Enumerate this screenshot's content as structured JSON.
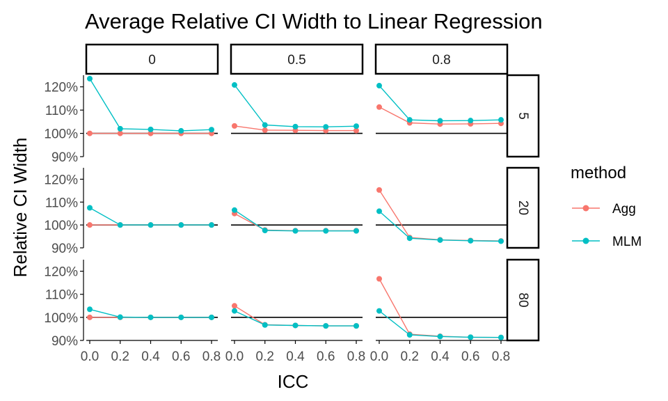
{
  "chart_data": {
    "type": "line",
    "title": "Average Relative CI Width to Linear Regression",
    "xlabel": "ICC",
    "ylabel": "Relative CI Width",
    "x": [
      0.0,
      0.2,
      0.4,
      0.6,
      0.8
    ],
    "x_tick_labels": [
      "0.0",
      "0.2",
      "0.4",
      "0.6",
      "0.8"
    ],
    "ylim": [
      90,
      125
    ],
    "y_ticks": [
      90,
      100,
      110,
      120
    ],
    "y_tick_labels": [
      "90%",
      "100%",
      "110%",
      "120%"
    ],
    "reference_line": 100,
    "legend": {
      "title": "method",
      "position": "right"
    },
    "col_facets": [
      "0",
      "0.5",
      "0.8"
    ],
    "row_facets": [
      "5",
      "20",
      "80"
    ],
    "series_styles": [
      {
        "name": "Agg",
        "color": "#F8766D"
      },
      {
        "name": "MLM",
        "color": "#00BFC4"
      }
    ],
    "panels": [
      {
        "col": "0",
        "row": "5",
        "series": [
          {
            "name": "Agg",
            "values": [
              100,
              100,
              100,
              100,
              100
            ]
          },
          {
            "name": "MLM",
            "values": [
              123.5,
              102,
              101.7,
              101.1,
              101.6
            ]
          }
        ]
      },
      {
        "col": "0.5",
        "row": "5",
        "series": [
          {
            "name": "Agg",
            "values": [
              103.2,
              101.4,
              101.3,
              101.2,
              101.2
            ]
          },
          {
            "name": "MLM",
            "values": [
              120.8,
              103.6,
              102.9,
              102.8,
              103.1
            ]
          }
        ]
      },
      {
        "col": "0.8",
        "row": "5",
        "series": [
          {
            "name": "Agg",
            "values": [
              111.3,
              104.5,
              104,
              104.1,
              104.3
            ]
          },
          {
            "name": "MLM",
            "values": [
              120.5,
              105.8,
              105.4,
              105.5,
              105.8
            ]
          }
        ]
      },
      {
        "col": "0",
        "row": "20",
        "series": [
          {
            "name": "Agg",
            "values": [
              100,
              100,
              100,
              100,
              100
            ]
          },
          {
            "name": "MLM",
            "values": [
              107.5,
              100,
              100,
              100,
              100
            ]
          }
        ]
      },
      {
        "col": "0.5",
        "row": "20",
        "series": [
          {
            "name": "Agg",
            "values": [
              105,
              97.8,
              97.5,
              97.5,
              97.5
            ]
          },
          {
            "name": "MLM",
            "values": [
              106.5,
              97.6,
              97.4,
              97.4,
              97.4
            ]
          }
        ]
      },
      {
        "col": "0.8",
        "row": "20",
        "series": [
          {
            "name": "Agg",
            "values": [
              115.3,
              94.5,
              93.5,
              93.2,
              93
            ]
          },
          {
            "name": "MLM",
            "values": [
              106,
              94.2,
              93.4,
              93.1,
              92.9
            ]
          }
        ]
      },
      {
        "col": "0",
        "row": "80",
        "series": [
          {
            "name": "Agg",
            "values": [
              100,
              100,
              100,
              100,
              100
            ]
          },
          {
            "name": "MLM",
            "values": [
              103.5,
              100.1,
              100,
              100,
              100
            ]
          }
        ]
      },
      {
        "col": "0.5",
        "row": "80",
        "series": [
          {
            "name": "Agg",
            "values": [
              105,
              96.8,
              96.5,
              96.3,
              96.3
            ]
          },
          {
            "name": "MLM",
            "values": [
              102.8,
              96.7,
              96.5,
              96.3,
              96.3
            ]
          }
        ]
      },
      {
        "col": "0.8",
        "row": "80",
        "series": [
          {
            "name": "Agg",
            "values": [
              116.7,
              92.7,
              91.8,
              91.4,
              91.3
            ]
          },
          {
            "name": "MLM",
            "values": [
              102.8,
              92.4,
              91.7,
              91.4,
              91.3
            ]
          }
        ]
      }
    ]
  }
}
